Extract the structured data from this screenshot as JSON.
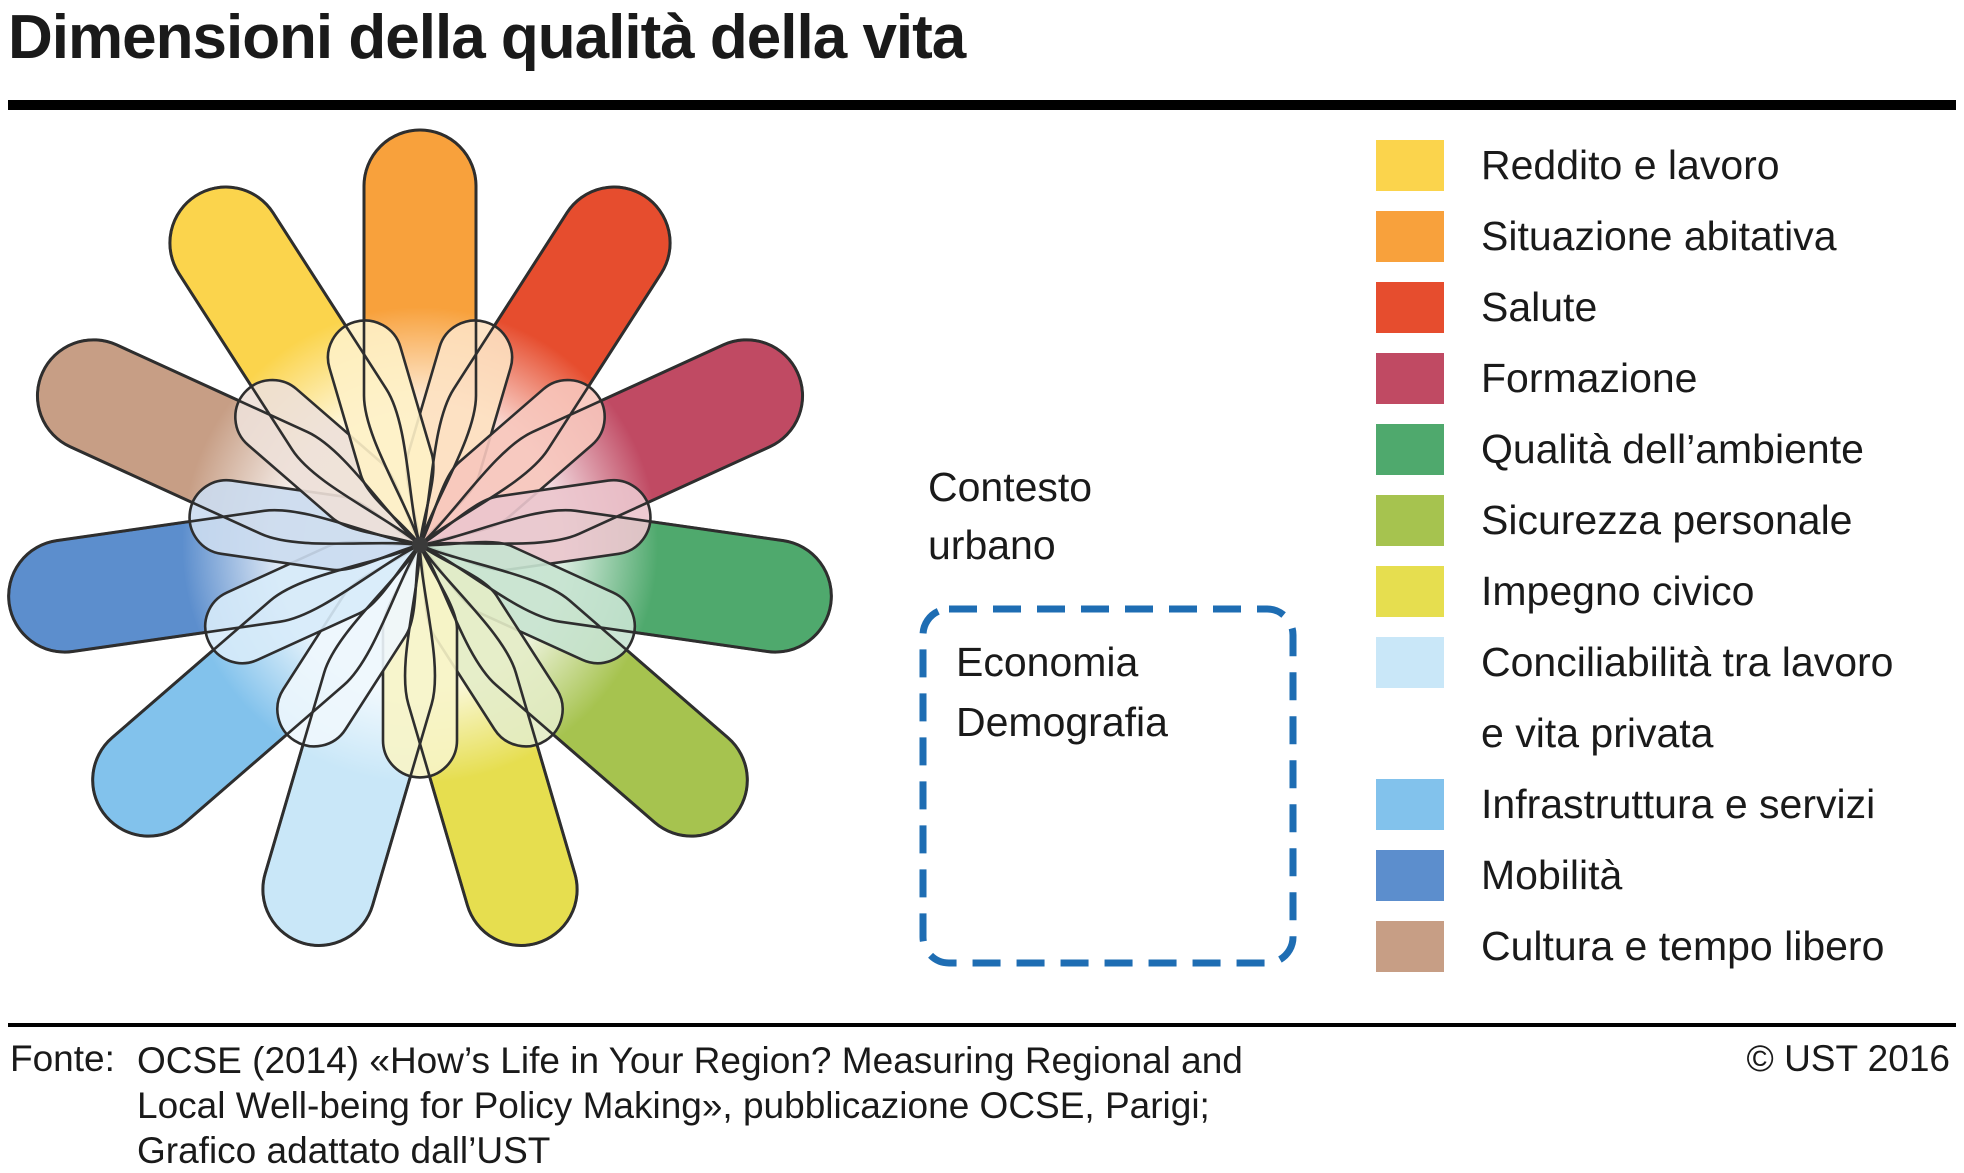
{
  "title": "Dimensioni della qualità della vita",
  "flower": {
    "outline_color": "#2e2e2e",
    "center_dot_color": "#3a3a3a",
    "petals_clockwise_from_top": [
      {
        "label": "Situazione abitativa",
        "color": "#F8A13C"
      },
      {
        "label": "Salute",
        "color": "#E64D2E"
      },
      {
        "label": "Formazione",
        "color": "#C04A63"
      },
      {
        "label": "Qualità dell’ambiente",
        "color": "#4FA96D"
      },
      {
        "label": "Sicurezza personale",
        "color": "#A6C34F"
      },
      {
        "label": "Impegno civico",
        "color": "#E6DE4F"
      },
      {
        "label": "Conciliabilità tra lavoro e vita privata",
        "color": "#C9E7F8"
      },
      {
        "label": "Infrastruttura e servizi",
        "color": "#82C2EC"
      },
      {
        "label": "Mobilità",
        "color": "#5C8ECD"
      },
      {
        "label": "Cultura e tempo libero",
        "color": "#C79E85"
      },
      {
        "label": "Reddito e lavoro",
        "color": "#FBD44C"
      }
    ]
  },
  "context_box": {
    "title": "Contesto\nurbano",
    "items_text": "Economia\nDemografia",
    "border_color": "#1E6DB3"
  },
  "legend": {
    "items": [
      {
        "label": "Reddito e lavoro",
        "color": "#FBD44C"
      },
      {
        "label": "Situazione abitativa",
        "color": "#F8A13C"
      },
      {
        "label": "Salute",
        "color": "#E64D2E"
      },
      {
        "label": "Formazione",
        "color": "#C04A63"
      },
      {
        "label": "Qualità dell’ambiente",
        "color": "#4FA96D"
      },
      {
        "label": "Sicurezza personale",
        "color": "#A6C34F"
      },
      {
        "label": "Impegno civico",
        "color": "#E6DE4F"
      },
      {
        "label": "Conciliabilità tra lavoro\ne vita privata",
        "color": "#C9E7F8"
      },
      {
        "label": "Infrastruttura e servizi",
        "color": "#82C2EC"
      },
      {
        "label": "Mobilità",
        "color": "#5C8ECD"
      },
      {
        "label": "Cultura e tempo libero",
        "color": "#C79E85"
      }
    ]
  },
  "footer": {
    "fonte_label": "Fonte:",
    "fonte_text": "OCSE (2014) «How’s Life in Your Region? Measuring Regional and\nLocal Well-being for Policy Making», pubblicazione OCSE, Parigi;\nGrafico adattato dall’UST",
    "copyright": "© UST 2016"
  }
}
